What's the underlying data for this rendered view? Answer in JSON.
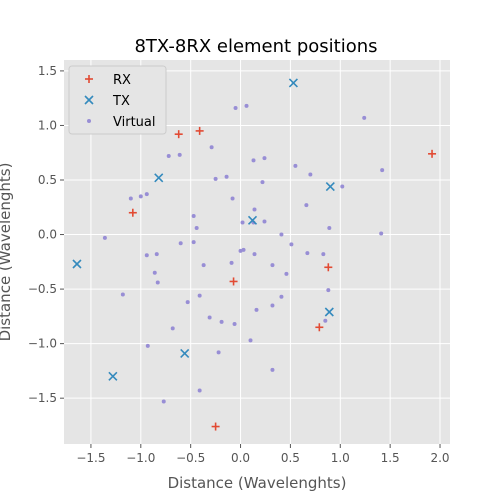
{
  "chart_data": {
    "type": "scatter",
    "title": "8TX-8RX element positions",
    "xlabel": "Distance (Wavelenghts)",
    "ylabel": "Distance (Wavelenghts)",
    "xlim": [
      -1.77,
      2.1
    ],
    "ylim": [
      -1.92,
      1.6
    ],
    "xticks": [
      -1.5,
      -1.0,
      -0.5,
      0.0,
      0.5,
      1.0,
      1.5,
      2.0
    ],
    "yticks": [
      -1.5,
      -1.0,
      -0.5,
      0.0,
      0.5,
      1.0,
      1.5
    ],
    "xtick_labels": [
      "−1.5",
      "−1.0",
      "−0.5",
      "0.0",
      "0.5",
      "1.0",
      "1.5",
      "2.0"
    ],
    "ytick_labels": [
      "−1.5",
      "−1.0",
      "−0.5",
      "0.0",
      "0.5",
      "1.0",
      "1.5"
    ],
    "grid": true,
    "legend_position": "top-left",
    "series": [
      {
        "name": "RX",
        "marker": "plus",
        "color": "#E24A33",
        "points": [
          [
            -0.62,
            0.92
          ],
          [
            -0.41,
            0.95
          ],
          [
            1.92,
            0.74
          ],
          [
            -1.08,
            0.2
          ],
          [
            0.88,
            -0.3
          ],
          [
            -0.07,
            -0.43
          ],
          [
            0.79,
            -0.85
          ],
          [
            -0.25,
            -1.76
          ]
        ]
      },
      {
        "name": "TX",
        "marker": "x",
        "color": "#348ABD",
        "points": [
          [
            0.53,
            1.39
          ],
          [
            -0.82,
            0.52
          ],
          [
            0.9,
            0.44
          ],
          [
            0.12,
            0.13
          ],
          [
            -1.64,
            -0.27
          ],
          [
            0.89,
            -0.71
          ],
          [
            -0.56,
            -1.09
          ],
          [
            -1.28,
            -1.3
          ]
        ]
      },
      {
        "name": "Virtual",
        "marker": "dot",
        "color": "#988ED5",
        "points": [
          [
            -0.05,
            1.16
          ],
          [
            0.06,
            1.18
          ],
          [
            1.24,
            1.07
          ],
          [
            -0.29,
            0.8
          ],
          [
            -0.72,
            0.72
          ],
          [
            -0.61,
            0.73
          ],
          [
            0.13,
            0.68
          ],
          [
            0.24,
            0.7
          ],
          [
            0.55,
            0.63
          ],
          [
            0.7,
            0.55
          ],
          [
            -0.25,
            0.51
          ],
          [
            -0.14,
            0.53
          ],
          [
            1.42,
            0.59
          ],
          [
            0.22,
            0.48
          ],
          [
            1.02,
            0.44
          ],
          [
            -1.1,
            0.33
          ],
          [
            -1.0,
            0.35
          ],
          [
            -0.94,
            0.37
          ],
          [
            -0.08,
            0.33
          ],
          [
            0.66,
            0.27
          ],
          [
            0.14,
            0.23
          ],
          [
            -0.47,
            0.17
          ],
          [
            -0.44,
            0.06
          ],
          [
            0.02,
            0.11
          ],
          [
            0.24,
            0.12
          ],
          [
            0.13,
            0.11
          ],
          [
            0.89,
            0.06
          ],
          [
            0.41,
            0.0
          ],
          [
            1.41,
            0.01
          ],
          [
            -1.36,
            -0.03
          ],
          [
            -0.6,
            -0.08
          ],
          [
            -0.47,
            -0.07
          ],
          [
            0.51,
            -0.09
          ],
          [
            0.0,
            -0.15
          ],
          [
            0.03,
            -0.14
          ],
          [
            -0.94,
            -0.19
          ],
          [
            -0.84,
            -0.18
          ],
          [
            0.14,
            -0.18
          ],
          [
            0.67,
            -0.17
          ],
          [
            0.83,
            -0.18
          ],
          [
            -0.37,
            -0.28
          ],
          [
            -0.09,
            -0.26
          ],
          [
            0.32,
            -0.28
          ],
          [
            -0.86,
            -0.35
          ],
          [
            0.46,
            -0.36
          ],
          [
            -0.83,
            -0.44
          ],
          [
            0.88,
            -0.51
          ],
          [
            -1.18,
            -0.55
          ],
          [
            -0.41,
            -0.56
          ],
          [
            0.41,
            -0.57
          ],
          [
            -0.53,
            -0.62
          ],
          [
            0.32,
            -0.65
          ],
          [
            0.16,
            -0.69
          ],
          [
            -0.31,
            -0.76
          ],
          [
            -0.19,
            -0.8
          ],
          [
            -0.06,
            -0.82
          ],
          [
            0.85,
            -0.79
          ],
          [
            -0.68,
            -0.86
          ],
          [
            0.1,
            -0.97
          ],
          [
            -0.93,
            -1.02
          ],
          [
            -0.22,
            -1.08
          ],
          [
            0.32,
            -1.24
          ],
          [
            -0.41,
            -1.43
          ],
          [
            -0.77,
            -1.53
          ]
        ]
      }
    ]
  }
}
